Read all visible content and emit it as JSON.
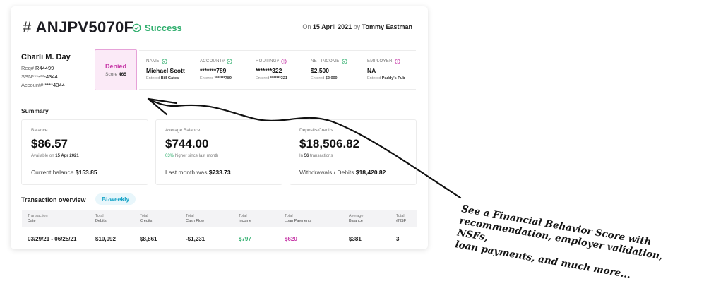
{
  "header": {
    "hash_symbol": "#",
    "request_id": "ANJPV5070F",
    "status": "Success",
    "meta_prefix": "On",
    "meta_date": "15 April 2021",
    "meta_by": "by",
    "meta_user": "Tommy Eastman"
  },
  "colors": {
    "success": "#2fae6d",
    "denied": "#c73aa8",
    "pill": "#1aa5c8"
  },
  "person": {
    "name": "Charli M. Day",
    "req_label": "Req#",
    "req_value": "R44499",
    "ssn_label": "SSN",
    "ssn_value": "***-**-4344",
    "account_label": "Account#",
    "account_value": "****4344"
  },
  "decision": {
    "label": "Denied",
    "score_label": "Score",
    "score_value": "465"
  },
  "fields": [
    {
      "title": "NAME",
      "icon": "check-circle-icon",
      "value": "Michael Scott",
      "entered_label": "Entered",
      "entered_value": "Bill Gates"
    },
    {
      "title": "ACCOUNT#",
      "icon": "check-circle-icon",
      "value": "*******789",
      "entered_label": "Entered",
      "entered_value": "*******789"
    },
    {
      "title": "ROUTING#",
      "icon": "info-circle-icon",
      "value": "*******322",
      "entered_label": "Entered",
      "entered_value": "*******321"
    },
    {
      "title": "NET INCOME",
      "icon": "check-circle-icon",
      "value": "$2,500",
      "entered_label": "Entered",
      "entered_value": "$2,000"
    },
    {
      "title": "EMPLOYER",
      "icon": "info-circle-icon",
      "value": "NA",
      "entered_label": "Entered",
      "entered_value": "Paddy's Pub"
    }
  ],
  "summary": {
    "title": "Summary",
    "balance": {
      "label": "Balance",
      "value": "$86.57",
      "sub_prefix": "Available on",
      "sub_value": "15 Apr 2021",
      "foot_label": "Current balance",
      "foot_value": "$153.85"
    },
    "average": {
      "label": "Average Balance",
      "value": "$744.00",
      "sub_percent": "03%",
      "sub_text": "higher since last month",
      "foot_label": "Last month was",
      "foot_value": "$733.73"
    },
    "deposits": {
      "label": "Deposits/Credits",
      "value": "$18,506.82",
      "sub_prefix": "In",
      "sub_value": "56",
      "sub_text": "transactions",
      "foot_label": "Withdrawals / Debits",
      "foot_value": "$18,420.82"
    }
  },
  "transactions": {
    "title": "Transaction overview",
    "period": "Bi-weekly",
    "columns": [
      {
        "top": "Transaction",
        "bottom": "Date"
      },
      {
        "top": "Total",
        "bottom": "Debits"
      },
      {
        "top": "Total",
        "bottom": "Credits"
      },
      {
        "top": "Total",
        "bottom": "Cash Flow"
      },
      {
        "top": "Total",
        "bottom": "Income"
      },
      {
        "top": "Total",
        "bottom": "Loan Payments"
      },
      {
        "top": "Average",
        "bottom": "Balance"
      },
      {
        "top": "Total",
        "bottom": "#NSF"
      }
    ],
    "rows": [
      [
        "03/29/21 - 06/25/21",
        "$10,092",
        "$8,861",
        "-$1,231",
        "$797",
        "$620",
        "$381",
        "3"
      ]
    ]
  },
  "annotation": {
    "line1": "See a Financial Behavior Score with",
    "line2": "recommendation, employer validation, NSFs,",
    "line3": "loan payments, and much more..."
  }
}
